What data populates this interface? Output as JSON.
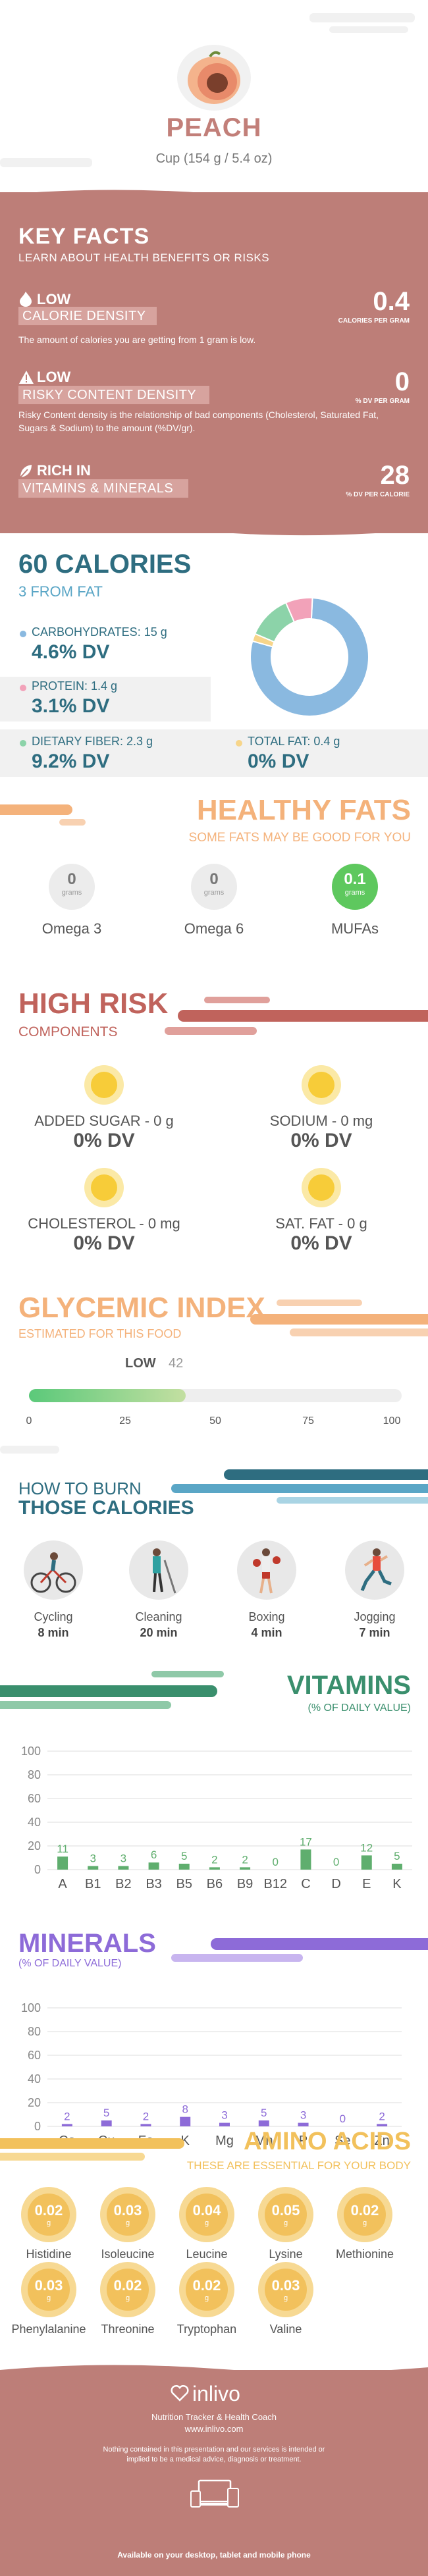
{
  "header": {
    "title": "PEACH",
    "serving": "Cup (154 g / 5.4 oz)",
    "fruit_icon": "peach-icon"
  },
  "key_facts": {
    "title": "KEY FACTS",
    "subtitle": "LEARN ABOUT HEALTH BENEFITS OR RISKS",
    "calorie": {
      "level": "LOW",
      "label": "CALORIE DENSITY",
      "desc": "The amount of calories you are getting from 1 gram is low.",
      "value": "0.4",
      "unit": "CALORIES PER GRAM"
    },
    "risky": {
      "level": "LOW",
      "label": "RISKY CONTENT DENSITY",
      "desc": "Risky Content density is the relationship of bad components (Cholesterol, Saturated Fat, Sugars & Sodium) to the amount (%DV/gr).",
      "value": "0",
      "unit": "% DV PER GRAM"
    },
    "rich": {
      "level": "RICH  IN",
      "label": "VITAMINS & MINERALS",
      "value": "28",
      "unit": "% DV PER CALORIE"
    }
  },
  "calories": {
    "title": "60 CALORIES",
    "subtitle": "3 FROM FAT",
    "carbs": {
      "label": "CARBOHYDRATES: 15 g",
      "dv": "4.6% DV",
      "color": "#8ab9e0"
    },
    "protein": {
      "label": "PROTEIN: 1.4 g",
      "dv": "3.1% DV",
      "color": "#f2a2b9"
    },
    "fiber": {
      "label": "DIETARY FIBER: 2.3 g",
      "dv": "9.2% DV",
      "color": "#8cd3a9"
    },
    "fat": {
      "label": "TOTAL FAT: 0.4 g",
      "dv": "0% DV",
      "color": "#f7d58a"
    }
  },
  "healthy_fats": {
    "title": "HEALTHY FATS",
    "subtitle": "SOME FATS MAY BE GOOD FOR YOU",
    "items": [
      {
        "value": "0",
        "unit": "grams",
        "name": "Omega 3"
      },
      {
        "value": "0",
        "unit": "grams",
        "name": "Omega 6"
      },
      {
        "value": "0.1",
        "unit": "grams",
        "name": "MUFAs"
      }
    ]
  },
  "high_risk": {
    "title": "HIGH RISK",
    "subtitle": "COMPONENTS",
    "items": [
      {
        "label": "ADDED SUGAR - 0 g",
        "dv": "0% DV"
      },
      {
        "label": "SODIUM - 0 mg",
        "dv": "0% DV"
      },
      {
        "label": "CHOLESTEROL - 0 mg",
        "dv": "0% DV"
      },
      {
        "label": "SAT. FAT - 0 g",
        "dv": "0% DV"
      }
    ]
  },
  "glycemic": {
    "title": "GLYCEMIC INDEX",
    "subtitle": "ESTIMATED FOR THIS FOOD",
    "level": "LOW",
    "value": "42",
    "ticks": [
      "0",
      "25",
      "50",
      "75",
      "100"
    ],
    "fraction": 0.42
  },
  "burn": {
    "title1": "HOW TO BURN",
    "title2": "THOSE CALORIES",
    "items": [
      {
        "name": "Cycling",
        "time": "8 min",
        "icon": "cycling-icon"
      },
      {
        "name": "Cleaning",
        "time": "20 min",
        "icon": "cleaning-icon"
      },
      {
        "name": "Boxing",
        "time": "4 min",
        "icon": "boxing-icon"
      },
      {
        "name": "Jogging",
        "time": "7 min",
        "icon": "jogging-icon"
      }
    ]
  },
  "chart_data": [
    {
      "type": "bar",
      "title": "VITAMINS",
      "subtitle": "(% OF DAILY VALUE)",
      "categories": [
        "A",
        "B1",
        "B2",
        "B3",
        "B5",
        "B6",
        "B9",
        "B12",
        "C",
        "D",
        "E",
        "K"
      ],
      "values": [
        11,
        3,
        3,
        6,
        5,
        2,
        2,
        0,
        17,
        0,
        12,
        5
      ],
      "ylim": [
        0,
        100
      ],
      "yticks": [
        "0",
        "20",
        "40",
        "60",
        "80",
        "100"
      ],
      "color": "#5fae6e"
    },
    {
      "type": "bar",
      "title": "MINERALS",
      "subtitle": "(% OF DAILY VALUE)",
      "categories": [
        "Ca",
        "Cu",
        "Fe",
        "K",
        "Mg",
        "Mn",
        "P",
        "Se",
        "Zn"
      ],
      "values": [
        2,
        5,
        2,
        8,
        3,
        5,
        3,
        0,
        2
      ],
      "ylim": [
        0,
        100
      ],
      "yticks": [
        "0",
        "20",
        "40",
        "60",
        "80",
        "100"
      ],
      "color": "#8d6bd8"
    }
  ],
  "amino": {
    "title": "AMINO ACIDS",
    "subtitle": "THESE ARE ESSENTIAL FOR YOUR BODY",
    "items": [
      {
        "value": "0.02",
        "name": "Histidine"
      },
      {
        "value": "0.03",
        "name": "Isoleucine"
      },
      {
        "value": "0.04",
        "name": "Leucine"
      },
      {
        "value": "0.05",
        "name": "Lysine"
      },
      {
        "value": "0.02",
        "name": "Methionine"
      },
      {
        "value": "0.03",
        "name": "Phenylalanine"
      },
      {
        "value": "0.02",
        "name": "Threonine"
      },
      {
        "value": "0.02",
        "name": "Tryptophan"
      },
      {
        "value": "0.03",
        "name": "Valine"
      }
    ],
    "unit": "g"
  },
  "footer": {
    "brand": "inlivo",
    "tagline": "Nutrition Tracker & Health Coach",
    "url": "www.inlivo.com",
    "disclaimer": "Nothing contained in this presentation and our services is intended or implied to be a medical advice, diagnosis or treatment.",
    "available": "Available on your desktop, tablet and mobile phone"
  }
}
